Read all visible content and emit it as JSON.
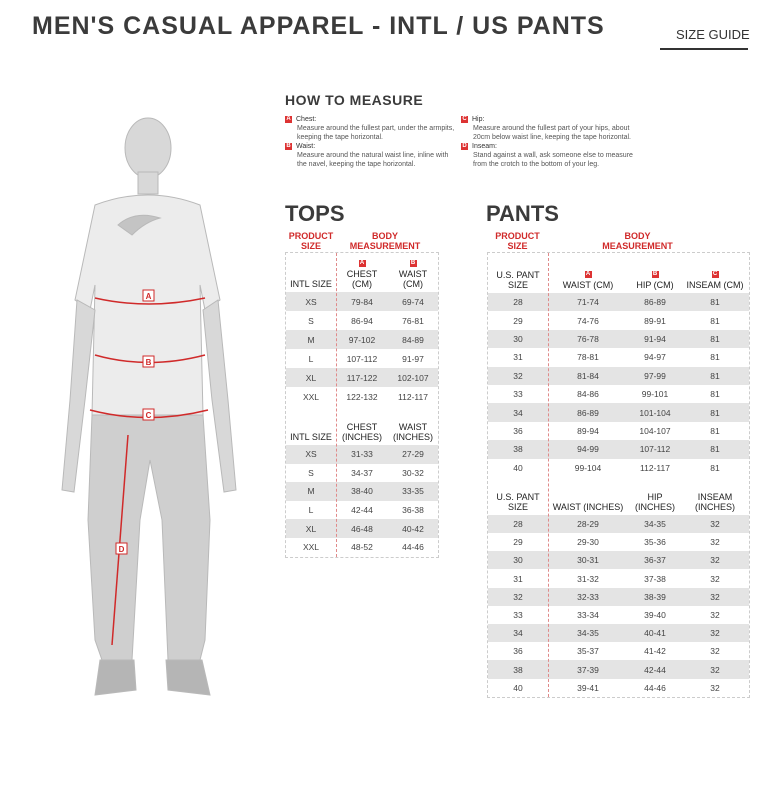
{
  "title": "MEN'S CASUAL APPAREL - INTL / US PANTS",
  "size_guide_label": "SIZE GUIDE",
  "how_to_measure": {
    "heading": "HOW TO MEASURE",
    "items": [
      {
        "letter": "A",
        "label": "Chest:",
        "desc": "Measure around the fullest part, under the armpits, keeping the tape horizontal."
      },
      {
        "letter": "B",
        "label": "Waist:",
        "desc": "Measure around the natural waist line, inline with the navel, keeping the tape horizontal."
      },
      {
        "letter": "C",
        "label": "Hip:",
        "desc": "Measure around the fullest part of your hips, about 20cm below waist line, keeping the tape horizontal."
      },
      {
        "letter": "D",
        "label": "Inseam:",
        "desc": "Stand against a wall, ask someone else to measure from the crotch to the bottom of your leg."
      }
    ]
  },
  "figure": {
    "markers": [
      "A",
      "B",
      "C",
      "D"
    ]
  },
  "colors": {
    "accent": "#d02a2a",
    "row_shade": "#e4e4e4",
    "text": "#3b3b3b"
  },
  "tops": {
    "heading": "TOPS",
    "product_size": "PRODUCT SIZE",
    "body_measurement": "BODY MEASUREMENT",
    "cm": {
      "headers": [
        "INTL SIZE",
        "CHEST (CM)",
        "WAIST (CM)"
      ],
      "badges": [
        "",
        "A",
        "B"
      ],
      "rows": [
        [
          "XS",
          "79-84",
          "69-74"
        ],
        [
          "S",
          "86-94",
          "76-81"
        ],
        [
          "M",
          "97-102",
          "84-89"
        ],
        [
          "L",
          "107-112",
          "91-97"
        ],
        [
          "XL",
          "117-122",
          "102-107"
        ],
        [
          "XXL",
          "122-132",
          "112-117"
        ]
      ]
    },
    "inches": {
      "headers": [
        "INTL SIZE",
        "CHEST (INCHES)",
        "WAIST (INCHES)"
      ],
      "rows": [
        [
          "XS",
          "31-33",
          "27-29"
        ],
        [
          "S",
          "34-37",
          "30-32"
        ],
        [
          "M",
          "38-40",
          "33-35"
        ],
        [
          "L",
          "42-44",
          "36-38"
        ],
        [
          "XL",
          "46-48",
          "40-42"
        ],
        [
          "XXL",
          "48-52",
          "44-46"
        ]
      ]
    }
  },
  "pants": {
    "heading": "PANTS",
    "product_size": "PRODUCT SIZE",
    "body_measurement": "BODY MEASUREMENT",
    "cm": {
      "headers": [
        "U.S. PANT SIZE",
        "WAIST (CM)",
        "HIP (CM)",
        "INSEAM (CM)"
      ],
      "badges": [
        "",
        "A",
        "B",
        "C"
      ],
      "rows": [
        [
          "28",
          "71-74",
          "86-89",
          "81"
        ],
        [
          "29",
          "74-76",
          "89-91",
          "81"
        ],
        [
          "30",
          "76-78",
          "91-94",
          "81"
        ],
        [
          "31",
          "78-81",
          "94-97",
          "81"
        ],
        [
          "32",
          "81-84",
          "97-99",
          "81"
        ],
        [
          "33",
          "84-86",
          "99-101",
          "81"
        ],
        [
          "34",
          "86-89",
          "101-104",
          "81"
        ],
        [
          "36",
          "89-94",
          "104-107",
          "81"
        ],
        [
          "38",
          "94-99",
          "107-112",
          "81"
        ],
        [
          "40",
          "99-104",
          "112-117",
          "81"
        ]
      ]
    },
    "inches": {
      "headers": [
        "U.S. PANT SIZE",
        "WAIST (INCHES)",
        "HIP (INCHES)",
        "INSEAM (INCHES)"
      ],
      "rows": [
        [
          "28",
          "28-29",
          "34-35",
          "32"
        ],
        [
          "29",
          "29-30",
          "35-36",
          "32"
        ],
        [
          "30",
          "30-31",
          "36-37",
          "32"
        ],
        [
          "31",
          "31-32",
          "37-38",
          "32"
        ],
        [
          "32",
          "32-33",
          "38-39",
          "32"
        ],
        [
          "33",
          "33-34",
          "39-40",
          "32"
        ],
        [
          "34",
          "34-35",
          "40-41",
          "32"
        ],
        [
          "36",
          "35-37",
          "41-42",
          "32"
        ],
        [
          "38",
          "37-39",
          "42-44",
          "32"
        ],
        [
          "40",
          "39-41",
          "44-46",
          "32"
        ]
      ]
    }
  }
}
